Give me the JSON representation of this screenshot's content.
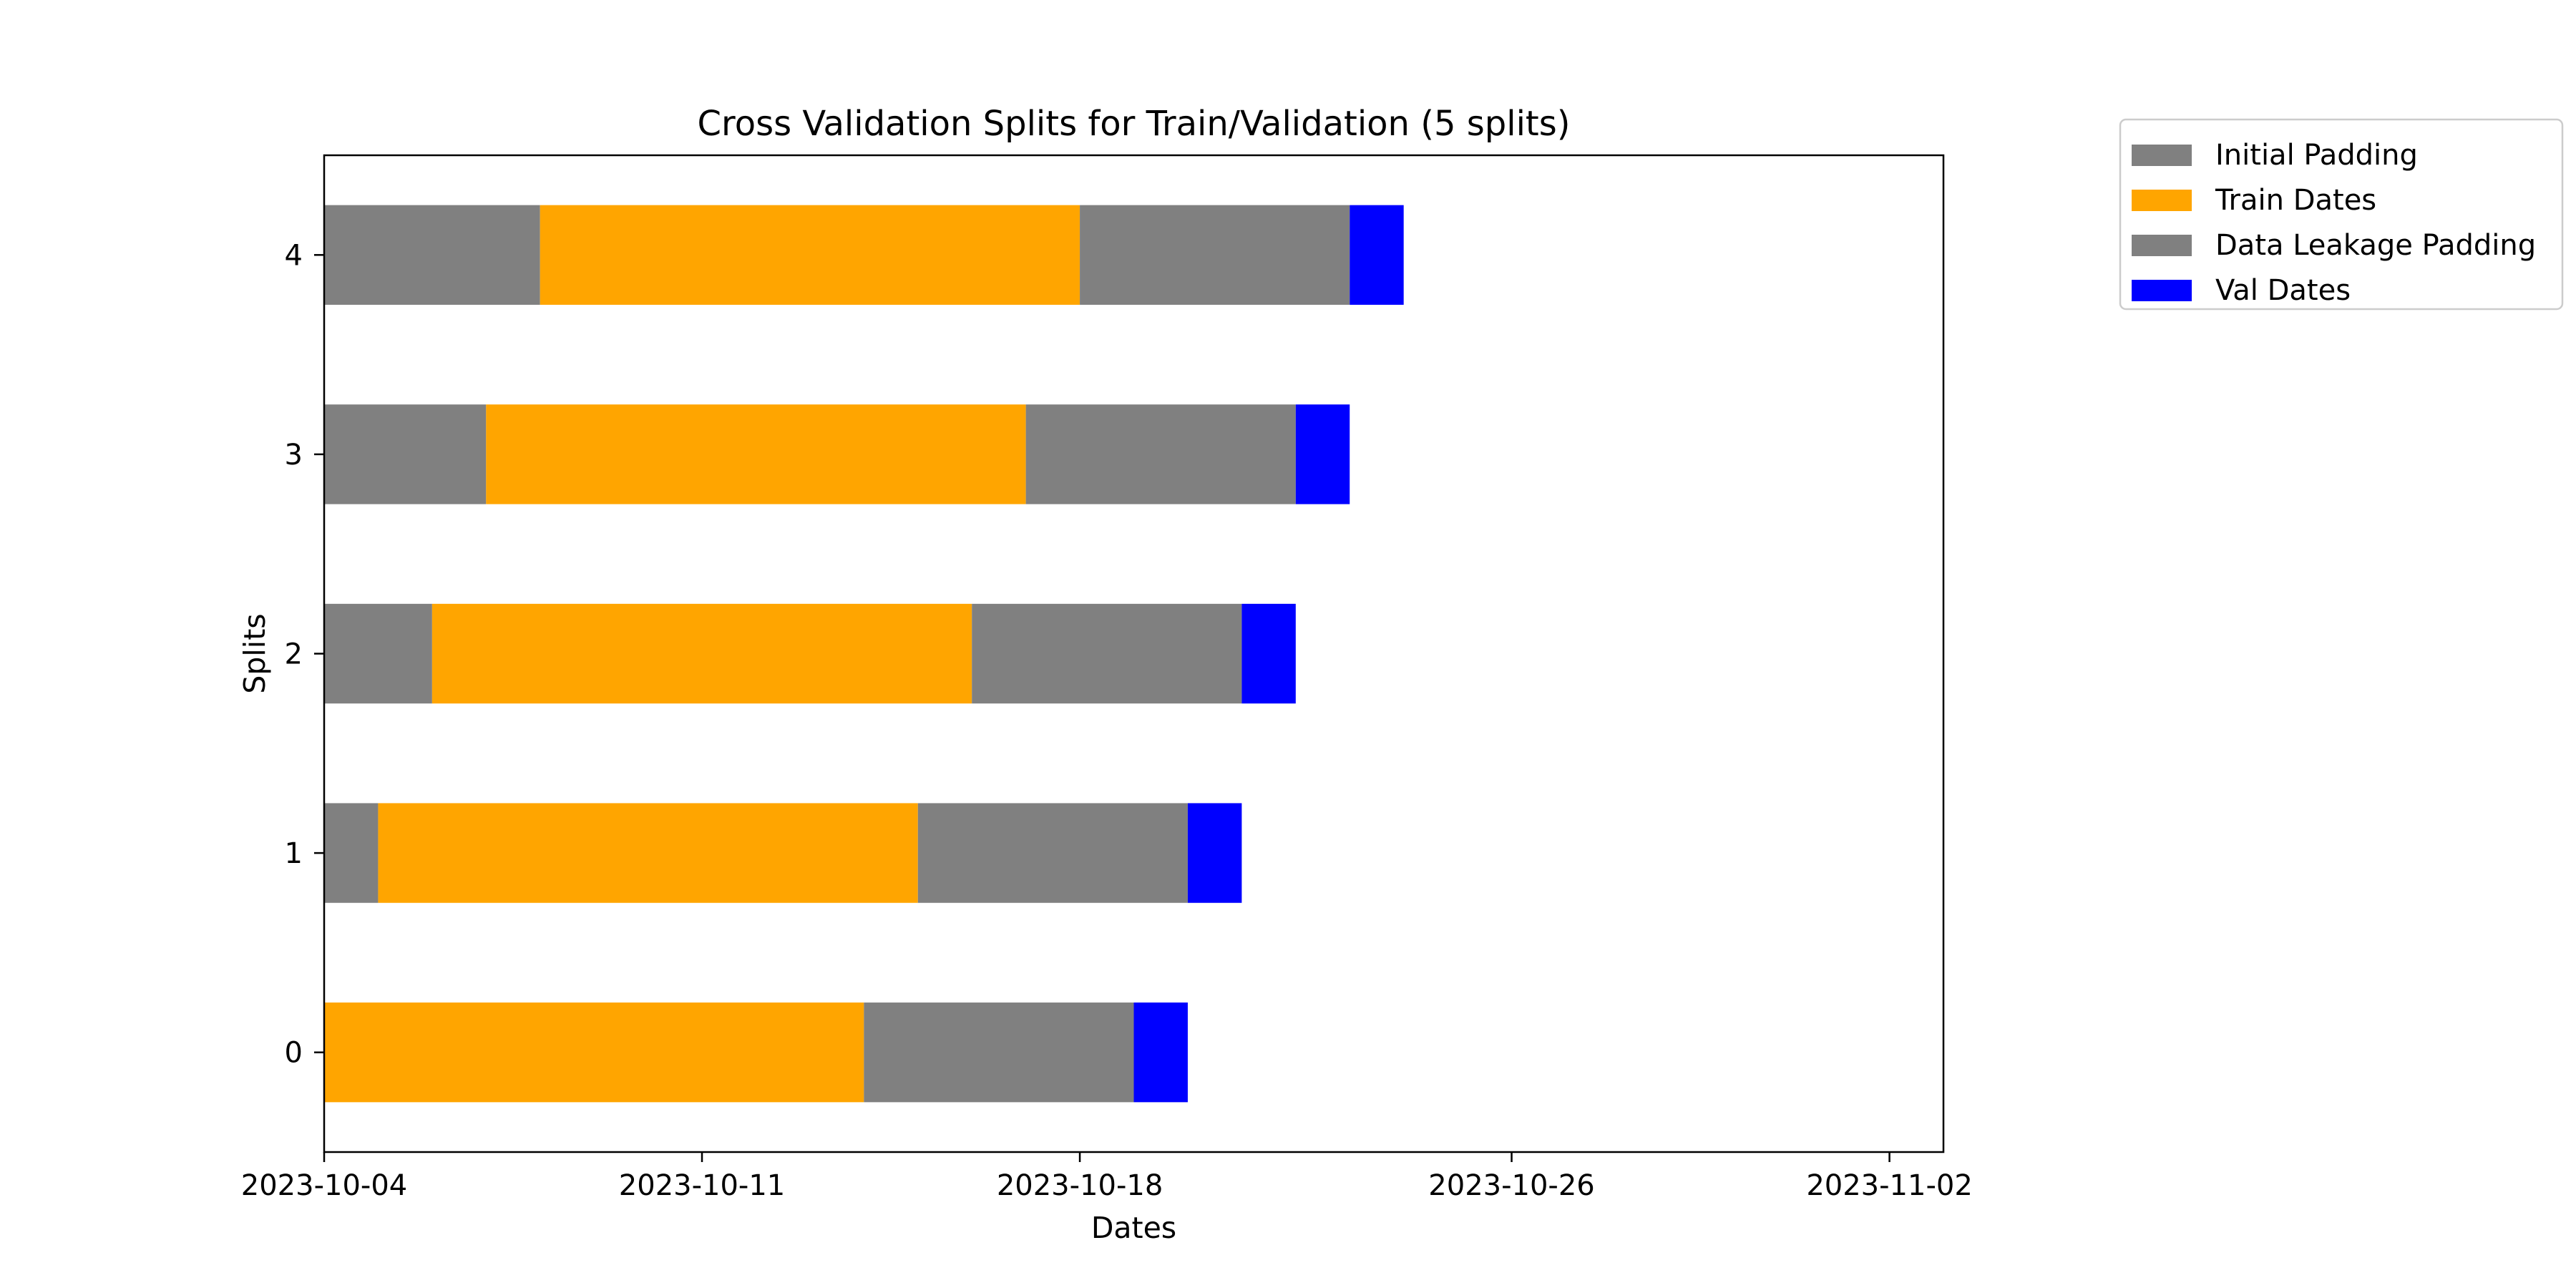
{
  "chart_data": {
    "type": "bar",
    "orientation": "horizontal",
    "stacked": true,
    "title": "Cross Validation Splits for Train/Validation (5 splits)",
    "xlabel": "Dates",
    "ylabel": "Splits",
    "x_axis_type": "date",
    "xlim": [
      "2023-10-04",
      "2023-11-03"
    ],
    "ylim": [
      -0.5,
      4.5
    ],
    "x_ticks": [
      "2023-10-04",
      "2023-10-11",
      "2023-10-18",
      "2023-10-26",
      "2023-11-02"
    ],
    "y_ticks": [
      "0",
      "1",
      "2",
      "3",
      "4"
    ],
    "categories": [
      "0",
      "1",
      "2",
      "3",
      "4"
    ],
    "grid": false,
    "legend_position": "outside upper right",
    "series": [
      {
        "name": "Initial Padding",
        "color": "#808080",
        "segments": [
          {
            "split": "1",
            "start": "2023-10-04",
            "end": "2023-10-05"
          },
          {
            "split": "2",
            "start": "2023-10-04",
            "end": "2023-10-06"
          },
          {
            "split": "3",
            "start": "2023-10-04",
            "end": "2023-10-07"
          },
          {
            "split": "4",
            "start": "2023-10-04",
            "end": "2023-10-08"
          }
        ]
      },
      {
        "name": "Train Dates",
        "color": "#ffa500",
        "segments": [
          {
            "split": "0",
            "start": "2023-10-04",
            "end": "2023-10-14"
          },
          {
            "split": "1",
            "start": "2023-10-05",
            "end": "2023-10-15"
          },
          {
            "split": "2",
            "start": "2023-10-06",
            "end": "2023-10-16"
          },
          {
            "split": "3",
            "start": "2023-10-07",
            "end": "2023-10-17"
          },
          {
            "split": "4",
            "start": "2023-10-08",
            "end": "2023-10-18"
          }
        ]
      },
      {
        "name": "Data Leakage Padding",
        "color": "#808080",
        "segments": [
          {
            "split": "0",
            "start": "2023-10-14",
            "end": "2023-10-19"
          },
          {
            "split": "1",
            "start": "2023-10-15",
            "end": "2023-10-20"
          },
          {
            "split": "2",
            "start": "2023-10-16",
            "end": "2023-10-21"
          },
          {
            "split": "3",
            "start": "2023-10-17",
            "end": "2023-10-22"
          },
          {
            "split": "4",
            "start": "2023-10-18",
            "end": "2023-10-23"
          }
        ]
      },
      {
        "name": "Val Dates",
        "color": "#0000ff",
        "segments": [
          {
            "split": "0",
            "start": "2023-10-19",
            "end": "2023-10-20"
          },
          {
            "split": "1",
            "start": "2023-10-20",
            "end": "2023-10-21"
          },
          {
            "split": "2",
            "start": "2023-10-21",
            "end": "2023-10-22"
          },
          {
            "split": "3",
            "start": "2023-10-22",
            "end": "2023-10-23"
          },
          {
            "split": "4",
            "start": "2023-10-23",
            "end": "2023-10-24"
          }
        ]
      }
    ]
  }
}
